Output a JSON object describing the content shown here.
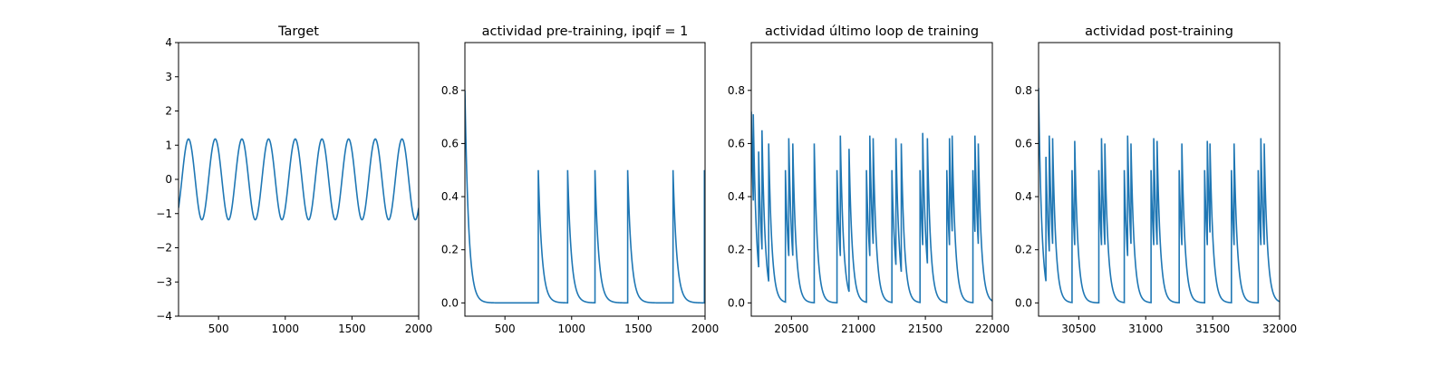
{
  "figure": {
    "background": "#ffffff",
    "line_color": "#1f77b4"
  },
  "chart_data": [
    {
      "type": "line",
      "title": "Target",
      "xlim": [
        200,
        2000
      ],
      "ylim": [
        -4,
        4
      ],
      "xticks": [
        500,
        1000,
        1500,
        2000
      ],
      "yticks": [
        -4,
        -3,
        -2,
        -1,
        0,
        1,
        2,
        3,
        4
      ],
      "series": [
        {
          "signal": "sine",
          "amplitude": 1.18,
          "period": 200,
          "x": [
            200,
            219,
            275,
            325,
            375,
            425,
            475,
            525,
            575,
            625,
            675,
            725,
            775,
            825,
            875,
            925,
            975,
            1025,
            1075,
            1125,
            1175,
            1225,
            1275,
            1325,
            1375,
            1425,
            1475,
            1525,
            1575,
            1625,
            1675,
            1725,
            1775,
            1825,
            1875,
            1925,
            1975,
            2000
          ],
          "peaks_x": [
            275,
            475,
            675,
            875,
            1075,
            1275,
            1475,
            1675,
            1875
          ],
          "troughs_x": [
            375,
            575,
            775,
            975,
            1175,
            1375,
            1575,
            1775,
            1975
          ],
          "y_start": -0.7,
          "y_end": -0.75
        }
      ]
    },
    {
      "type": "line",
      "title": "actividad pre-training, ipqif = 1",
      "xlim": [
        200,
        2000
      ],
      "ylim": [
        -0.05,
        0.98
      ],
      "xticks": [
        500,
        1000,
        1500,
        2000
      ],
      "yticks": [
        0.0,
        0.2,
        0.4,
        0.6,
        0.8
      ],
      "series": [
        {
          "signal": "spikes",
          "start_value": 0.8,
          "decay": 28,
          "baseline": 0.0,
          "spikes": [
            {
              "x": 750,
              "y": 0.5
            },
            {
              "x": 970,
              "y": 0.5
            },
            {
              "x": 1175,
              "y": 0.5
            },
            {
              "x": 1420,
              "y": 0.5
            },
            {
              "x": 1760,
              "y": 0.5
            },
            {
              "x": 1995,
              "y": 0.5
            }
          ]
        }
      ]
    },
    {
      "type": "line",
      "title": "actividad último loop de training",
      "xlim": [
        20200,
        22000
      ],
      "ylim": [
        -0.05,
        0.98
      ],
      "xticks": [
        20500,
        21000,
        21500,
        22000
      ],
      "yticks": [
        0.0,
        0.2,
        0.4,
        0.6,
        0.8
      ],
      "series": [
        {
          "signal": "spikes",
          "start_value": 0.72,
          "decay": 24,
          "baseline": 0.0,
          "spikes": [
            {
              "x": 20215,
              "y": 0.71
            },
            {
              "x": 20255,
              "y": 0.57
            },
            {
              "x": 20280,
              "y": 0.65
            },
            {
              "x": 20330,
              "y": 0.6
            },
            {
              "x": 20455,
              "y": 0.5
            },
            {
              "x": 20480,
              "y": 0.62
            },
            {
              "x": 20510,
              "y": 0.6
            },
            {
              "x": 20670,
              "y": 0.6
            },
            {
              "x": 20840,
              "y": 0.5
            },
            {
              "x": 20865,
              "y": 0.63
            },
            {
              "x": 20930,
              "y": 0.58
            },
            {
              "x": 21060,
              "y": 0.5
            },
            {
              "x": 21085,
              "y": 0.63
            },
            {
              "x": 21110,
              "y": 0.62
            },
            {
              "x": 21250,
              "y": 0.5
            },
            {
              "x": 21280,
              "y": 0.62
            },
            {
              "x": 21320,
              "y": 0.6
            },
            {
              "x": 21460,
              "y": 0.5
            },
            {
              "x": 21480,
              "y": 0.64
            },
            {
              "x": 21515,
              "y": 0.62
            },
            {
              "x": 21660,
              "y": 0.5
            },
            {
              "x": 21680,
              "y": 0.62
            },
            {
              "x": 21700,
              "y": 0.63
            },
            {
              "x": 21855,
              "y": 0.5
            },
            {
              "x": 21870,
              "y": 0.63
            },
            {
              "x": 21895,
              "y": 0.6
            }
          ]
        }
      ]
    },
    {
      "type": "line",
      "title": "actividad post-training",
      "xlim": [
        30200,
        32000
      ],
      "ylim": [
        -0.05,
        0.98
      ],
      "xticks": [
        30500,
        31000,
        31500,
        32000
      ],
      "yticks": [
        0.0,
        0.2,
        0.4,
        0.6,
        0.8
      ],
      "series": [
        {
          "signal": "spikes",
          "start_value": 0.81,
          "decay": 24,
          "baseline": 0.0,
          "spikes": [
            {
              "x": 30255,
              "y": 0.55
            },
            {
              "x": 30280,
              "y": 0.63
            },
            {
              "x": 30305,
              "y": 0.62
            },
            {
              "x": 30450,
              "y": 0.5
            },
            {
              "x": 30470,
              "y": 0.61
            },
            {
              "x": 30650,
              "y": 0.5
            },
            {
              "x": 30670,
              "y": 0.62
            },
            {
              "x": 30695,
              "y": 0.6
            },
            {
              "x": 30840,
              "y": 0.5
            },
            {
              "x": 30865,
              "y": 0.63
            },
            {
              "x": 30890,
              "y": 0.6
            },
            {
              "x": 31040,
              "y": 0.5
            },
            {
              "x": 31060,
              "y": 0.62
            },
            {
              "x": 31085,
              "y": 0.61
            },
            {
              "x": 31250,
              "y": 0.5
            },
            {
              "x": 31270,
              "y": 0.6
            },
            {
              "x": 31440,
              "y": 0.5
            },
            {
              "x": 31460,
              "y": 0.61
            },
            {
              "x": 31480,
              "y": 0.6
            },
            {
              "x": 31640,
              "y": 0.5
            },
            {
              "x": 31660,
              "y": 0.6
            },
            {
              "x": 31840,
              "y": 0.5
            },
            {
              "x": 31860,
              "y": 0.62
            },
            {
              "x": 31885,
              "y": 0.6
            }
          ]
        }
      ]
    }
  ]
}
